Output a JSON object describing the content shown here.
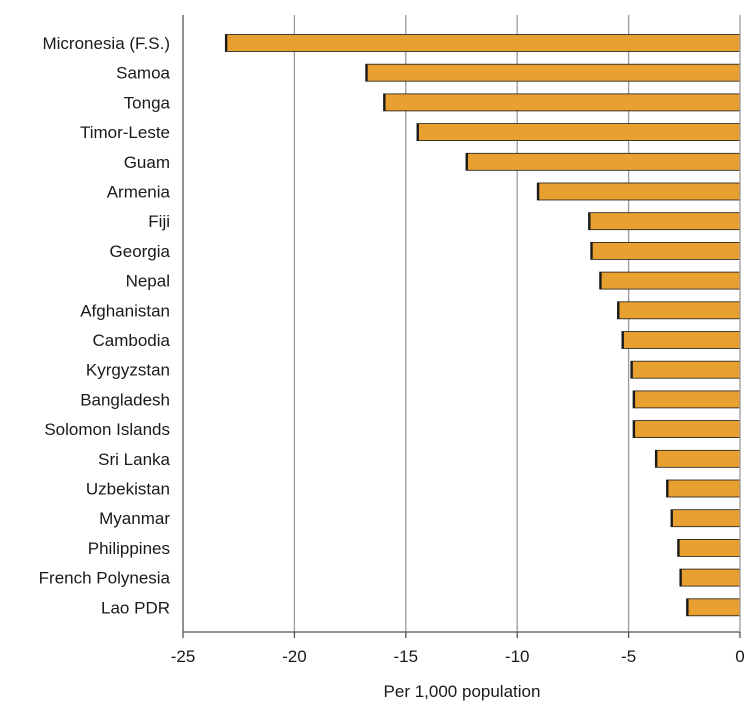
{
  "chart_data": {
    "type": "bar",
    "orientation": "horizontal",
    "title": "",
    "xlabel": "Per 1,000 population",
    "ylabel": "",
    "categories": [
      "Micronesia (F.S.)",
      "Samoa",
      "Tonga",
      "Timor-Leste",
      "Guam",
      "Armenia",
      "Fiji",
      "Georgia",
      "Nepal",
      "Afghanistan",
      "Cambodia",
      "Kyrgyzstan",
      "Bangladesh",
      "Solomon Islands",
      "Sri Lanka",
      "Uzbekistan",
      "Myanmar",
      "Philippines",
      "French Polynesia",
      "Lao PDR"
    ],
    "values": [
      -23.1,
      -16.8,
      -16.0,
      -14.5,
      -12.3,
      -9.1,
      -6.8,
      -6.7,
      -6.3,
      -5.5,
      -5.3,
      -4.9,
      -4.8,
      -4.8,
      -3.8,
      -3.3,
      -3.1,
      -2.8,
      -2.7,
      -2.4
    ],
    "xlim": [
      -25,
      0
    ],
    "xticks": [
      -25,
      -20,
      -15,
      -10,
      -5,
      0
    ],
    "xtick_labels": [
      "-25",
      "-20",
      "-15",
      "-10",
      "-5",
      "0"
    ],
    "grid": "vertical",
    "legend": "none",
    "colors": {
      "bar": "#E8A030",
      "bar_edge": "#1a1a1a",
      "grid": "#9a9a9a",
      "axis": "#555555"
    }
  }
}
